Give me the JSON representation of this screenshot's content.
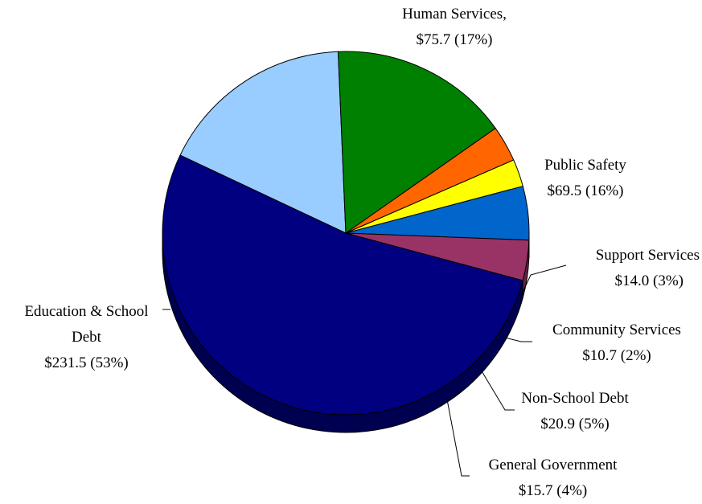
{
  "chart_data": {
    "type": "pie",
    "title": "",
    "total": 438.0,
    "slices": [
      {
        "label_lines": [
          "Human Services,",
          "$75.7 (17%)"
        ],
        "value": 75.7,
        "percent": 17,
        "color": "#99ccff",
        "side": "#6e94ba"
      },
      {
        "label_lines": [
          "Public Safety",
          "$69.5 (16%)"
        ],
        "value": 69.5,
        "percent": 16,
        "color": "#008000",
        "side": "#005200"
      },
      {
        "label_lines": [
          "Support Services",
          "$14.0 (3%)"
        ],
        "value": 14.0,
        "percent": 3,
        "color": "#ff6600",
        "side": "#b84800"
      },
      {
        "label_lines": [
          "Community Services",
          "$10.7 (2%)"
        ],
        "value": 10.7,
        "percent": 2,
        "color": "#ffff00",
        "side": "#b3b300"
      },
      {
        "label_lines": [
          "Non-School Debt",
          "$20.9 (5%)"
        ],
        "value": 20.9,
        "percent": 5,
        "color": "#0066cc",
        "side": "#003f80"
      },
      {
        "label_lines": [
          "General Government",
          "$15.7 (4%)"
        ],
        "value": 15.7,
        "percent": 4,
        "color": "#993366",
        "side": "#662244"
      },
      {
        "label_lines": [
          "Education & School",
          "Debt",
          "$231.5 (53%)"
        ],
        "value": 231.5,
        "percent": 53,
        "color": "#000080",
        "side": "#000050"
      }
    ]
  }
}
